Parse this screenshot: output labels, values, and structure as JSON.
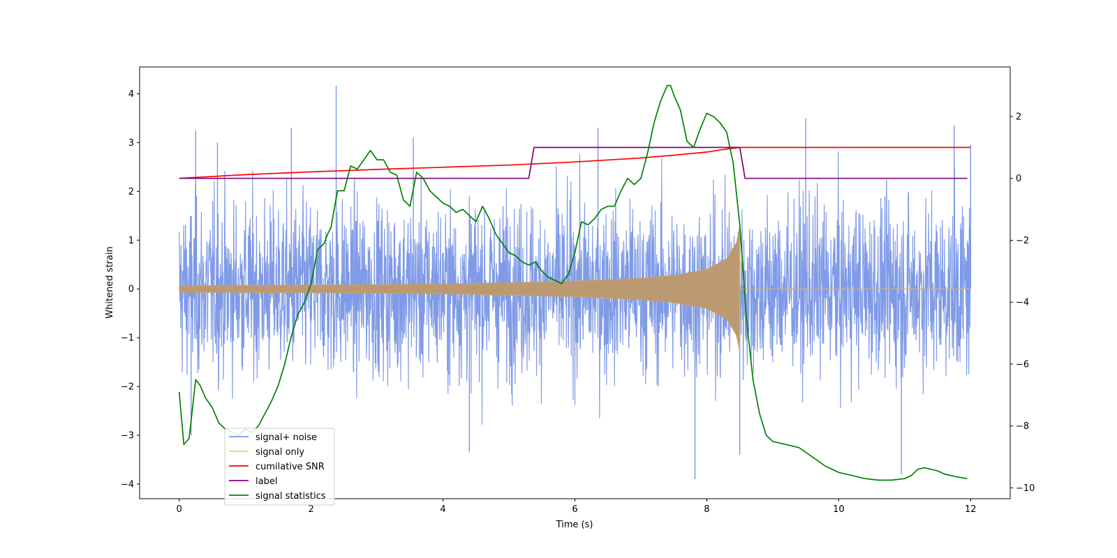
{
  "chart_data": {
    "type": "line",
    "title": "",
    "xlabel": "Time (s)",
    "ylabel": "Whitened strain",
    "xlim": [
      -0.6,
      12.6
    ],
    "ylim": [
      -4.3,
      4.55
    ],
    "y2lim": [
      -10.35,
      3.6
    ],
    "x_ticks": [
      0,
      2,
      4,
      6,
      8,
      10,
      12
    ],
    "y_ticks": [
      -4,
      -3,
      -2,
      -1,
      0,
      1,
      2,
      3,
      4
    ],
    "y2_ticks": [
      -10,
      -8,
      -6,
      -4,
      -2,
      0,
      2
    ],
    "grid": false,
    "legend_position": "lower-left",
    "series": [
      {
        "name": "signal+ noise",
        "axis": "left",
        "color": "#7895e6",
        "kind": "noise",
        "x_range": [
          0,
          12
        ],
        "typical_range": [
          -2.0,
          2.1
        ],
        "extremes": [
          {
            "x": 0.25,
            "y": 3.25
          },
          {
            "x": 0.58,
            "y": 3.0
          },
          {
            "x": 1.7,
            "y": 3.3
          },
          {
            "x": 2.38,
            "y": 4.17
          },
          {
            "x": 3.55,
            "y": 3.1
          },
          {
            "x": 6.35,
            "y": 3.3
          },
          {
            "x": 9.5,
            "y": 3.5
          },
          {
            "x": 11.75,
            "y": 3.35
          },
          {
            "x": 12.0,
            "y": 2.95
          },
          {
            "x": 4.4,
            "y": -3.35
          },
          {
            "x": 7.82,
            "y": -3.9
          },
          {
            "x": 8.5,
            "y": -3.4
          },
          {
            "x": 10.95,
            "y": -3.8
          },
          {
            "x": 0.18,
            "y": -3.0
          }
        ]
      },
      {
        "name": "signal only",
        "axis": "left",
        "color": "#ffc966",
        "kind": "chirp",
        "x_range": [
          0,
          12
        ],
        "merger_time": 8.5,
        "envelope": [
          {
            "x": 0.0,
            "y": 0.07
          },
          {
            "x": 2.0,
            "y": 0.08
          },
          {
            "x": 4.0,
            "y": 0.1
          },
          {
            "x": 6.0,
            "y": 0.16
          },
          {
            "x": 7.0,
            "y": 0.22
          },
          {
            "x": 7.5,
            "y": 0.28
          },
          {
            "x": 8.0,
            "y": 0.4
          },
          {
            "x": 8.3,
            "y": 0.62
          },
          {
            "x": 8.45,
            "y": 0.95
          },
          {
            "x": 8.5,
            "y": 1.3
          }
        ]
      },
      {
        "name": "cumilative SNR",
        "axis": "right",
        "color": "#ff0000",
        "x": [
          0,
          1,
          2,
          3,
          4,
          5,
          6,
          7,
          7.5,
          8,
          8.3,
          8.5,
          12
        ],
        "y": [
          0.0,
          0.12,
          0.21,
          0.29,
          0.36,
          0.43,
          0.53,
          0.66,
          0.75,
          0.85,
          0.95,
          1.0,
          1.0
        ]
      },
      {
        "name": "label",
        "axis": "right",
        "color": "#800080",
        "x": [
          0,
          5.3,
          5.38,
          8.5,
          8.58,
          11.95
        ],
        "y": [
          0,
          0,
          1,
          1,
          0,
          0
        ]
      },
      {
        "name": "signal statistics",
        "axis": "right",
        "color": "#008000",
        "x": [
          0,
          0.07,
          0.15,
          0.25,
          0.32,
          0.4,
          0.5,
          0.6,
          0.7,
          0.8,
          0.9,
          1.0,
          1.1,
          1.2,
          1.3,
          1.4,
          1.5,
          1.6,
          1.7,
          1.8,
          1.9,
          2.0,
          2.1,
          2.2,
          2.25,
          2.3,
          2.4,
          2.5,
          2.6,
          2.7,
          2.8,
          2.9,
          3.0,
          3.1,
          3.2,
          3.3,
          3.4,
          3.5,
          3.6,
          3.7,
          3.8,
          3.9,
          4.0,
          4.1,
          4.2,
          4.3,
          4.4,
          4.5,
          4.6,
          4.7,
          4.8,
          4.9,
          5.0,
          5.1,
          5.2,
          5.3,
          5.4,
          5.5,
          5.6,
          5.7,
          5.8,
          5.9,
          6.0,
          6.1,
          6.2,
          6.3,
          6.4,
          6.5,
          6.6,
          6.7,
          6.8,
          6.9,
          7.0,
          7.1,
          7.2,
          7.3,
          7.4,
          7.45,
          7.5,
          7.6,
          7.7,
          7.8,
          7.9,
          8.0,
          8.1,
          8.2,
          8.3,
          8.4,
          8.5,
          8.6,
          8.7,
          8.8,
          8.9,
          9.0,
          9.2,
          9.4,
          9.6,
          9.8,
          10.0,
          10.2,
          10.4,
          10.6,
          10.8,
          11.0,
          11.1,
          11.2,
          11.3,
          11.4,
          11.5,
          11.6,
          11.8,
          11.95
        ],
        "y": [
          -6.9,
          -8.6,
          -8.4,
          -6.5,
          -6.7,
          -7.1,
          -7.4,
          -7.9,
          -8.1,
          -8.2,
          -8.3,
          -8.1,
          -8.2,
          -8.0,
          -7.6,
          -7.2,
          -6.7,
          -6.0,
          -5.1,
          -4.4,
          -4.0,
          -3.4,
          -2.3,
          -2.1,
          -1.8,
          -1.6,
          -0.4,
          -0.4,
          0.4,
          0.3,
          0.6,
          0.9,
          0.6,
          0.6,
          0.2,
          0.1,
          -0.7,
          -0.9,
          0.2,
          0.0,
          -0.4,
          -0.6,
          -0.8,
          -0.9,
          -1.1,
          -1.0,
          -1.2,
          -1.4,
          -0.9,
          -1.3,
          -1.8,
          -2.1,
          -2.4,
          -2.5,
          -2.7,
          -2.8,
          -2.7,
          -3.0,
          -3.2,
          -3.3,
          -3.4,
          -3.1,
          -2.4,
          -1.4,
          -1.5,
          -1.3,
          -1.0,
          -0.9,
          -0.9,
          -0.4,
          0.0,
          -0.2,
          0.0,
          0.8,
          1.8,
          2.5,
          3.0,
          3.0,
          2.7,
          2.2,
          1.2,
          1.0,
          1.6,
          2.1,
          2.0,
          1.8,
          1.5,
          0.5,
          -1.5,
          -4.5,
          -6.5,
          -7.6,
          -8.3,
          -8.5,
          -8.6,
          -8.7,
          -9.0,
          -9.3,
          -9.5,
          -9.6,
          -9.7,
          -9.75,
          -9.75,
          -9.7,
          -9.6,
          -9.4,
          -9.35,
          -9.4,
          -9.45,
          -9.55,
          -9.65,
          -9.7
        ]
      }
    ]
  }
}
